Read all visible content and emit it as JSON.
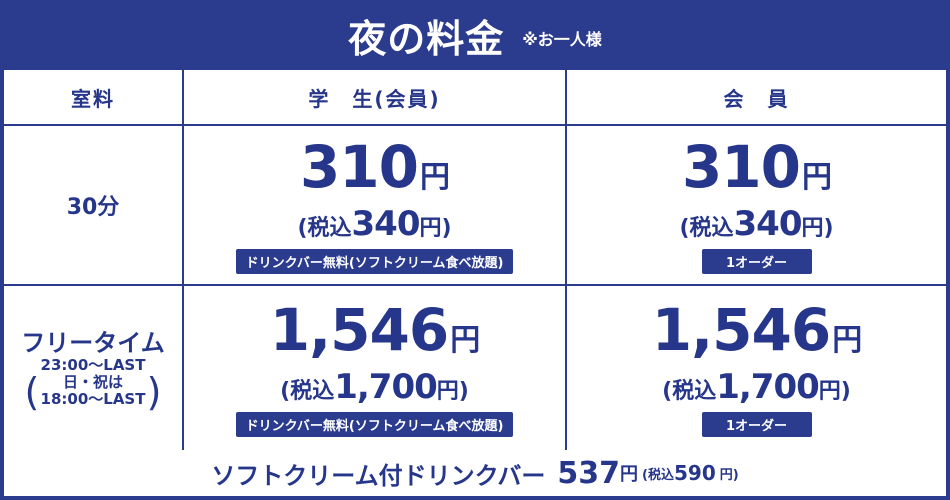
{
  "title": {
    "main": "夜の料金",
    "note": "※お一人様"
  },
  "header": {
    "room": "室料",
    "student": "学　生(会員)",
    "member": "会　員"
  },
  "rows": {
    "thirty": {
      "label": "30分",
      "student": {
        "price": "310",
        "yen": "円",
        "tax_pre": "(税込",
        "tax_num": "340",
        "tax_post": "円)",
        "tag": "ドリンクバー無料(ソフトクリーム食べ放題)"
      },
      "member": {
        "price": "310",
        "yen": "円",
        "tax_pre": "(税込",
        "tax_num": "340",
        "tax_post": "円)",
        "tag": "1オーダー"
      }
    },
    "free": {
      "label": "フリータイム",
      "time1": "23:00～LAST",
      "time2": "日・祝は",
      "time3": "18:00～LAST",
      "paren_l": "(",
      "paren_r": ")",
      "student": {
        "price": "1,546",
        "yen": "円",
        "tax_pre": "(税込",
        "tax_num": "1,700",
        "tax_post": "円)",
        "tag": "ドリンクバー無料(ソフトクリーム食べ放題)"
      },
      "member": {
        "price": "1,546",
        "yen": "円",
        "tax_pre": "(税込",
        "tax_num": "1,700",
        "tax_post": "円)",
        "tag": "1オーダー"
      }
    }
  },
  "footer": {
    "label": "ソフトクリーム付ドリンクバー",
    "price": "537",
    "yen": "円",
    "tax_pre": "(税込",
    "tax_num": "590",
    "tax_post": "円)"
  },
  "colors": {
    "brand_blue": "#2b3b8e",
    "text_blue": "#26368a",
    "background": "#ffffff"
  }
}
